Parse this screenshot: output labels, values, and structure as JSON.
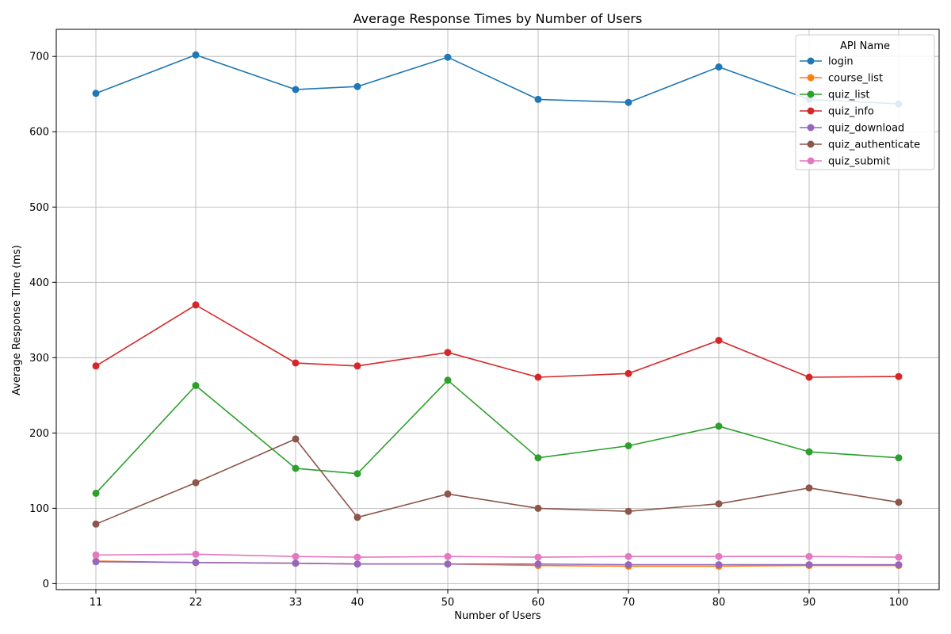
{
  "chart_data": {
    "type": "line",
    "title": "Average Response Times by Number of Users",
    "xlabel": "Number of Users",
    "ylabel": "Average Response Time (ms)",
    "x": [
      11,
      22,
      33,
      40,
      50,
      60,
      70,
      80,
      90,
      100
    ],
    "x_scale": "categorical",
    "ylim": [
      -8,
      736
    ],
    "yticks": [
      0,
      100,
      200,
      300,
      400,
      500,
      600,
      700
    ],
    "grid": true,
    "legend": {
      "title": "API Name",
      "placement": "top-right"
    },
    "series": [
      {
        "name": "login",
        "color": "#1f77b4",
        "values": [
          651,
          702,
          656,
          660,
          699,
          643,
          639,
          686,
          643,
          637
        ]
      },
      {
        "name": "course_list",
        "color": "#ff7f0e",
        "values": [
          30,
          28,
          27,
          26,
          26,
          24,
          23,
          23,
          24,
          24
        ]
      },
      {
        "name": "quiz_list",
        "color": "#2ca02c",
        "values": [
          120,
          263,
          153,
          146,
          270,
          167,
          183,
          209,
          175,
          167
        ]
      },
      {
        "name": "quiz_info",
        "color": "#d62728",
        "values": [
          289,
          370,
          293,
          289,
          307,
          274,
          279,
          323,
          274,
          275
        ]
      },
      {
        "name": "quiz_download",
        "color": "#9467bd",
        "values": [
          29,
          28,
          27,
          26,
          26,
          26,
          25,
          25,
          25,
          25
        ]
      },
      {
        "name": "quiz_authenticate",
        "color": "#8c564b",
        "values": [
          79,
          134,
          192,
          88,
          119,
          100,
          96,
          106,
          127,
          108
        ]
      },
      {
        "name": "quiz_submit",
        "color": "#e377c2",
        "values": [
          38,
          39,
          36,
          35,
          36,
          35,
          36,
          36,
          36,
          35
        ]
      }
    ]
  }
}
